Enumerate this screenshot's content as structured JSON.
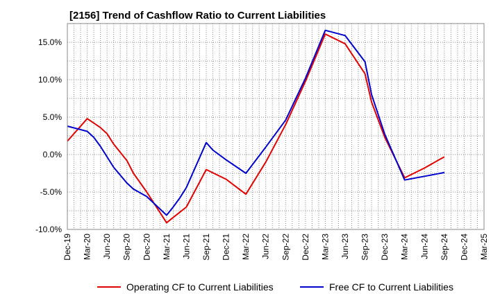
{
  "chart_data": {
    "type": "line",
    "title": "[2156]  Trend of Cashflow Ratio to Current Liabilities",
    "xlabel": "",
    "ylabel": "",
    "y_unit": "%",
    "ylim": [
      -10,
      17.5
    ],
    "yticks": [
      -10,
      -5,
      0,
      5,
      10,
      15
    ],
    "ytick_labels": [
      "-10.0%",
      "-5.0%",
      "0.0%",
      "5.0%",
      "10.0%",
      "15.0%"
    ],
    "xlim": [
      "Dec-19",
      "Mar-25"
    ],
    "xtick_labels": [
      "Dec-19",
      "Mar-20",
      "Jun-20",
      "Sep-20",
      "Dec-20",
      "Mar-21",
      "Jun-21",
      "Sep-21",
      "Dec-21",
      "Mar-22",
      "Jun-22",
      "Sep-22",
      "Dec-22",
      "Mar-23",
      "Jun-23",
      "Sep-23",
      "Dec-23",
      "Mar-24",
      "Jun-24",
      "Sep-24",
      "Dec-24",
      "Mar-25"
    ],
    "grid": true,
    "legend_position": "bottom",
    "series": [
      {
        "name": "Operating CF to Current Liabilities",
        "color": "#e00000",
        "points": [
          {
            "x": "Dec-19",
            "y": 1.8
          },
          {
            "x": "Mar-20",
            "y": 4.8
          },
          {
            "x": "Apr-20",
            "y": 4.2
          },
          {
            "x": "May-20",
            "y": 3.6
          },
          {
            "x": "Jun-20",
            "y": 2.8
          },
          {
            "x": "Jul-20",
            "y": 1.4
          },
          {
            "x": "Sep-20",
            "y": -0.8
          },
          {
            "x": "Oct-20",
            "y": -2.5
          },
          {
            "x": "Dec-20",
            "y": -5.0
          },
          {
            "x": "Mar-21",
            "y": -9.1
          },
          {
            "x": "Apr-21",
            "y": -8.4
          },
          {
            "x": "Jun-21",
            "y": -7.0
          },
          {
            "x": "Sep-21",
            "y": -2.0
          },
          {
            "x": "Dec-21",
            "y": -3.3
          },
          {
            "x": "Mar-22",
            "y": -5.3
          },
          {
            "x": "Jun-22",
            "y": -1.0
          },
          {
            "x": "Sep-22",
            "y": 4.0
          },
          {
            "x": "Dec-22",
            "y": 9.8
          },
          {
            "x": "Mar-23",
            "y": 16.1
          },
          {
            "x": "Jun-23",
            "y": 14.8
          },
          {
            "x": "Sep-23",
            "y": 10.8
          },
          {
            "x": "Oct-23",
            "y": 7.0
          },
          {
            "x": "Dec-23",
            "y": 2.3
          },
          {
            "x": "Mar-24",
            "y": -3.1
          },
          {
            "x": "Jun-24",
            "y": -1.8
          },
          {
            "x": "Sep-24",
            "y": -0.3
          }
        ]
      },
      {
        "name": "Free CF to Current Liabilities",
        "color": "#0000cc",
        "points": [
          {
            "x": "Dec-19",
            "y": 3.8
          },
          {
            "x": "Mar-20",
            "y": 3.1
          },
          {
            "x": "Apr-20",
            "y": 2.3
          },
          {
            "x": "May-20",
            "y": 1.1
          },
          {
            "x": "Jun-20",
            "y": -0.3
          },
          {
            "x": "Jul-20",
            "y": -1.7
          },
          {
            "x": "Sep-20",
            "y": -3.8
          },
          {
            "x": "Oct-20",
            "y": -4.6
          },
          {
            "x": "Dec-20",
            "y": -5.6
          },
          {
            "x": "Mar-21",
            "y": -8.1
          },
          {
            "x": "Apr-21",
            "y": -7.0
          },
          {
            "x": "May-21",
            "y": -5.8
          },
          {
            "x": "Jun-21",
            "y": -4.4
          },
          {
            "x": "Sep-21",
            "y": 1.6
          },
          {
            "x": "Oct-21",
            "y": 0.6
          },
          {
            "x": "Dec-21",
            "y": -0.7
          },
          {
            "x": "Mar-22",
            "y": -2.5
          },
          {
            "x": "Jun-22",
            "y": 1.0
          },
          {
            "x": "Sep-22",
            "y": 4.6
          },
          {
            "x": "Dec-22",
            "y": 10.2
          },
          {
            "x": "Mar-23",
            "y": 16.6
          },
          {
            "x": "Jun-23",
            "y": 15.9
          },
          {
            "x": "Sep-23",
            "y": 12.4
          },
          {
            "x": "Oct-23",
            "y": 8.0
          },
          {
            "x": "Dec-23",
            "y": 2.7
          },
          {
            "x": "Mar-24",
            "y": -3.4
          },
          {
            "x": "Jun-24",
            "y": -2.9
          },
          {
            "x": "Sep-24",
            "y": -2.4
          }
        ]
      }
    ]
  }
}
